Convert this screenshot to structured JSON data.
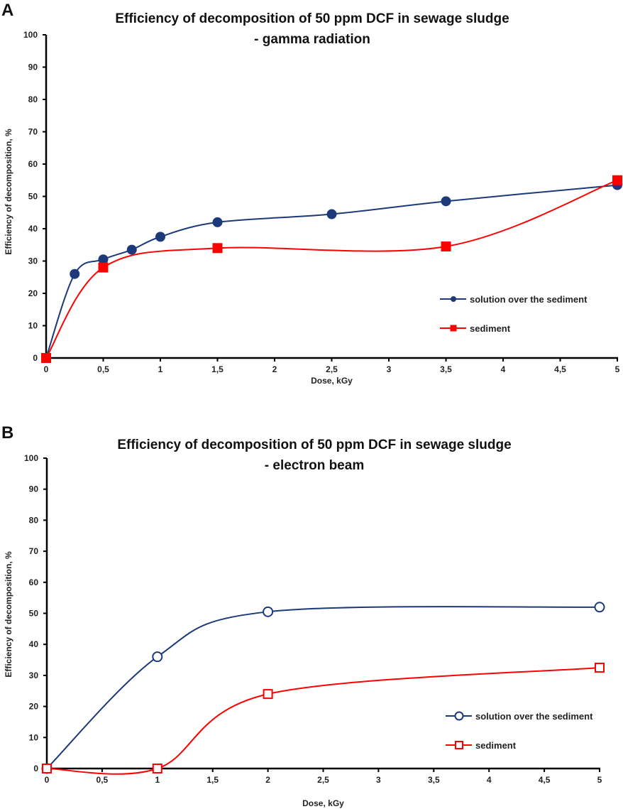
{
  "chart_data": [
    {
      "panel": "A",
      "type": "line",
      "title": [
        "Efficiency of decomposition of 50 ppm DCF in sewage sludge",
        "- gamma radiation"
      ],
      "xlabel": "Dose, kGy",
      "ylabel": "Efficiency of decomposition, %",
      "xlim": [
        0,
        5
      ],
      "ylim": [
        0,
        100
      ],
      "xticks": [
        "0",
        "0,5",
        "1",
        "1,5",
        "2",
        "2,5",
        "3",
        "3,5",
        "4",
        "4,5",
        "5"
      ],
      "yticks": [
        "0",
        "10",
        "20",
        "30",
        "40",
        "50",
        "60",
        "70",
        "80",
        "90",
        "100"
      ],
      "grid": false,
      "legend_position": "right",
      "series": [
        {
          "name": "solution over the sediment",
          "color": "#1c3a7a",
          "marker": "filled-circle",
          "x": [
            0,
            0.25,
            0.5,
            0.75,
            1,
            1.5,
            2.5,
            3.5,
            5
          ],
          "y": [
            0,
            26,
            30.5,
            33.5,
            37.5,
            42,
            44.5,
            48.5,
            53.5
          ]
        },
        {
          "name": "sediment",
          "color": "#ff0000",
          "marker": "filled-square",
          "x": [
            0,
            0.5,
            1.5,
            3.5,
            5
          ],
          "y": [
            0,
            28,
            34,
            34.5,
            55
          ]
        }
      ]
    },
    {
      "panel": "B",
      "type": "line",
      "title": [
        "Efficiency of decomposition of 50 ppm DCF in sewage sludge",
        "- electron beam"
      ],
      "xlabel": "Dose, kGy",
      "ylabel": "Efficiency of decomposition, %",
      "xlim": [
        0,
        5
      ],
      "ylim": [
        0,
        100
      ],
      "xticks": [
        "0",
        "0,5",
        "1",
        "1,5",
        "2",
        "2,5",
        "3",
        "3,5",
        "4",
        "4,5",
        "5"
      ],
      "yticks": [
        "0",
        "10",
        "20",
        "30",
        "40",
        "50",
        "60",
        "70",
        "80",
        "90",
        "100"
      ],
      "grid": false,
      "legend_position": "right",
      "series": [
        {
          "name": "solution over the sediment",
          "color": "#1c3a7a",
          "marker": "hollow-circle",
          "x": [
            0,
            1,
            2,
            5
          ],
          "y": [
            0,
            36,
            50.5,
            52
          ]
        },
        {
          "name": "sediment",
          "color": "#ff0000",
          "marker": "hollow-square",
          "x": [
            0,
            1,
            2,
            5
          ],
          "y": [
            0,
            0,
            24,
            32.5
          ]
        }
      ]
    }
  ]
}
